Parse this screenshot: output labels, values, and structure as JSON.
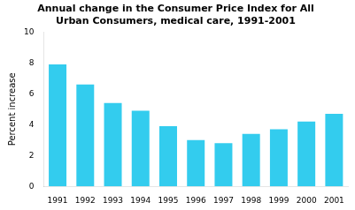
{
  "chart_data": {
    "type": "bar",
    "title": "Annual change in the Consumer Price Index for All\nUrban Consumers, medical care, 1991-2001",
    "ylabel": "Percent increase",
    "categories": [
      "1991",
      "1992",
      "1993",
      "1994",
      "1995",
      "1996",
      "1997",
      "1998",
      "1999",
      "2000",
      "2001"
    ],
    "values": [
      7.9,
      6.6,
      5.4,
      4.9,
      3.9,
      3.0,
      2.8,
      3.4,
      3.7,
      4.2,
      4.7
    ],
    "color": "#33CCEE",
    "ylim": [
      0,
      10
    ],
    "yticks": [
      0,
      2,
      4,
      6,
      8,
      10
    ],
    "grid": false
  }
}
